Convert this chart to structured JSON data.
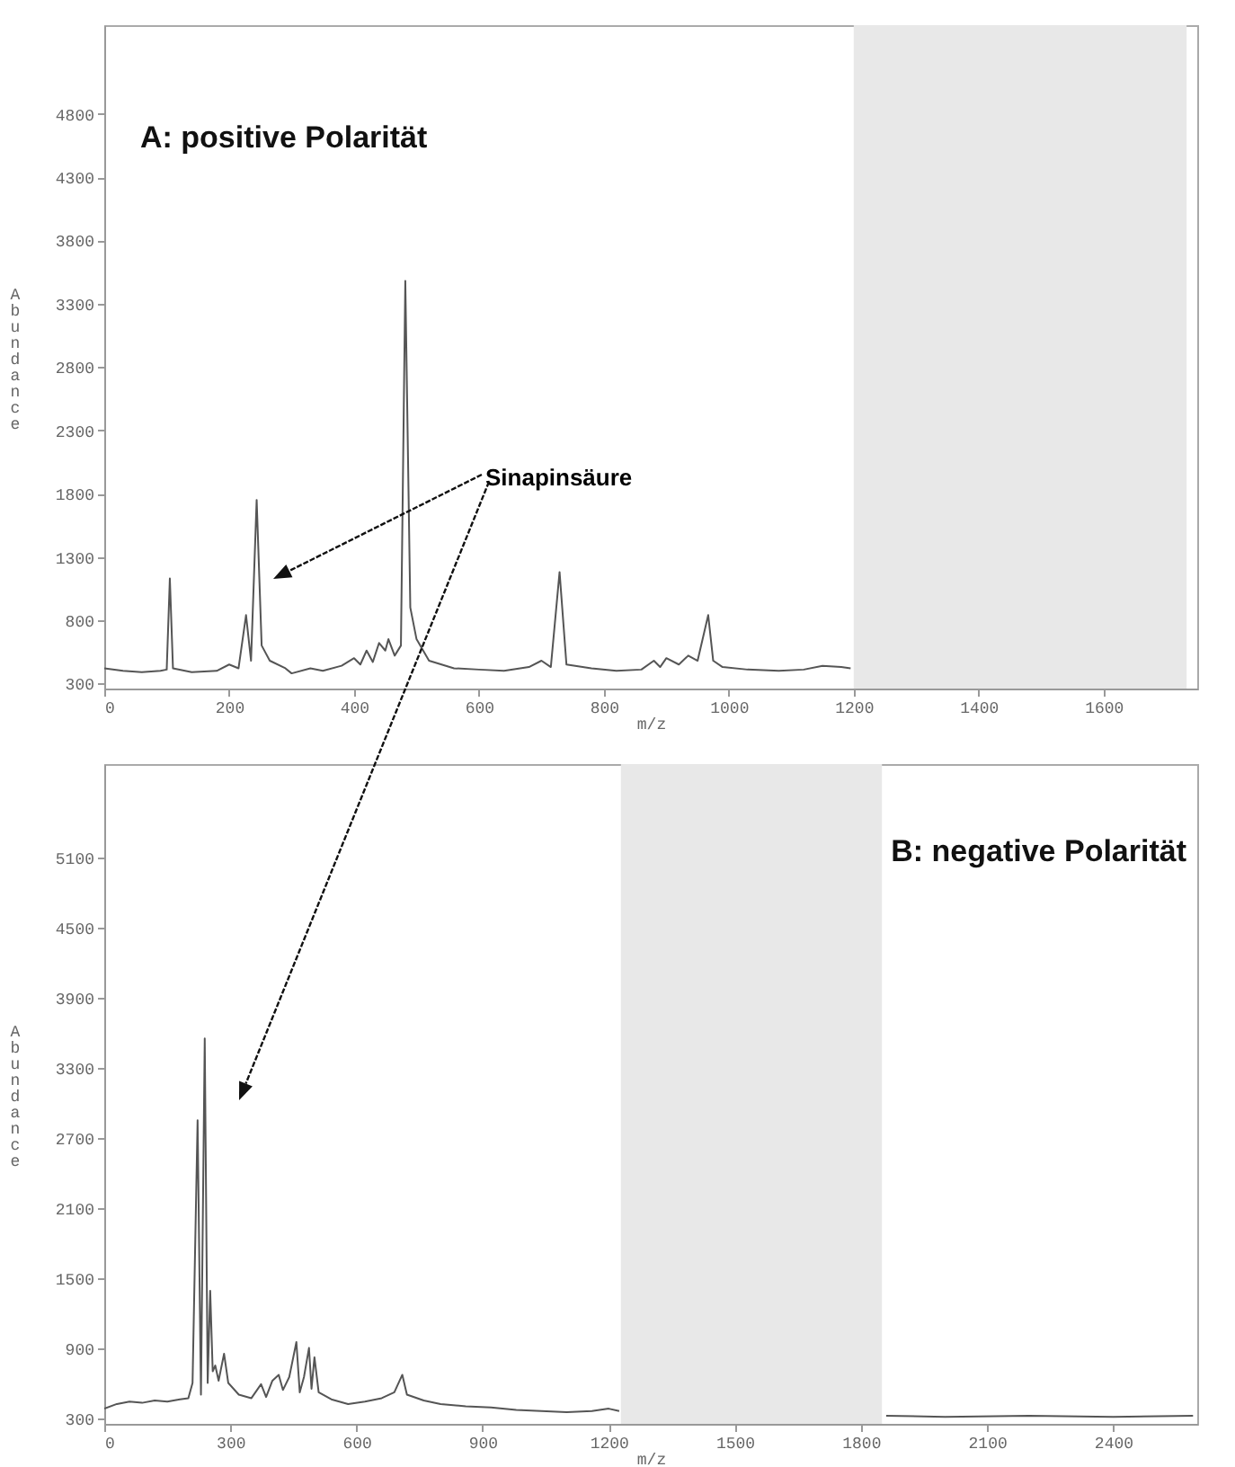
{
  "chart_data": [
    {
      "type": "line",
      "title": "A: positive Polarität",
      "xlabel": "m/z",
      "ylabel": "Abundance",
      "xlim": [
        0,
        1750
      ],
      "ylim": [
        260,
        5500
      ],
      "xticks": [
        0,
        200,
        400,
        600,
        800,
        1000,
        1200,
        1400,
        1600
      ],
      "yticks": [
        300,
        800,
        1300,
        1800,
        2300,
        2800,
        3300,
        3800,
        4300,
        4800
      ],
      "series": [
        {
          "color": "#555555",
          "x": [
            0,
            30,
            60,
            90,
            100,
            105,
            110,
            140,
            180,
            200,
            215,
            227,
            235,
            244,
            252,
            265,
            290,
            300,
            330,
            350,
            380,
            400,
            410,
            420,
            430,
            440,
            450,
            455,
            465,
            475,
            482,
            490,
            500,
            520,
            560,
            600,
            640,
            680,
            700,
            715,
            729,
            740,
            780,
            820,
            860,
            880,
            890,
            900,
            920,
            935,
            950,
            967,
            975,
            990,
            1030,
            1080,
            1120,
            1150,
            1180,
            1195
          ],
          "values": [
            420,
            400,
            390,
            400,
            410,
            1130,
            420,
            390,
            400,
            450,
            420,
            840,
            480,
            1750,
            600,
            480,
            420,
            380,
            420,
            400,
            440,
            500,
            450,
            560,
            470,
            620,
            560,
            650,
            520,
            600,
            3480,
            900,
            650,
            480,
            420,
            410,
            400,
            430,
            480,
            430,
            1180,
            450,
            420,
            400,
            410,
            480,
            430,
            500,
            450,
            520,
            480,
            840,
            480,
            430,
            410,
            400,
            410,
            440,
            430,
            420
          ]
        }
      ],
      "bands": [
        {
          "axis": "x",
          "from": 1200,
          "to": 1733,
          "color": "#e8e8e8"
        }
      ],
      "annotations": [
        "Sinapinsäure"
      ]
    },
    {
      "type": "line",
      "title": "B: negative Polarität",
      "xlabel": "m/z",
      "ylabel": "Abundance",
      "xlim": [
        0,
        2600
      ],
      "ylim": [
        250,
        5900
      ],
      "xticks": [
        0,
        300,
        600,
        900,
        1200,
        1500,
        1800,
        2100,
        2400
      ],
      "yticks": [
        300,
        900,
        1500,
        2100,
        2700,
        3300,
        3900,
        4500,
        5100
      ],
      "series": [
        {
          "color": "#555555",
          "x": [
            0,
            30,
            60,
            90,
            120,
            150,
            180,
            200,
            210,
            222,
            230,
            239,
            246,
            252,
            258,
            264,
            272,
            285,
            295,
            320,
            350,
            373,
            385,
            400,
            415,
            425,
            440,
            457,
            465,
            475,
            487,
            493,
            500,
            510,
            540,
            580,
            620,
            660,
            690,
            709,
            720,
            760,
            800,
            860,
            920,
            980,
            1040,
            1100,
            1160,
            1200,
            1225,
            1500,
            1860,
            2000,
            2200,
            2400,
            2590
          ],
          "values": [
            380,
            420,
            440,
            430,
            450,
            440,
            460,
            470,
            600,
            2850,
            500,
            3550,
            600,
            1390,
            700,
            750,
            620,
            850,
            600,
            500,
            470,
            590,
            480,
            620,
            670,
            540,
            650,
            950,
            520,
            650,
            900,
            550,
            820,
            520,
            460,
            420,
            440,
            470,
            520,
            670,
            500,
            450,
            420,
            400,
            390,
            370,
            360,
            350,
            360,
            380,
            360,
            null,
            320,
            310,
            320,
            310,
            320
          ]
        }
      ],
      "bands": [
        {
          "axis": "x",
          "from": 1229,
          "to": 1850,
          "color": "#e8e8e8"
        }
      ]
    }
  ]
}
